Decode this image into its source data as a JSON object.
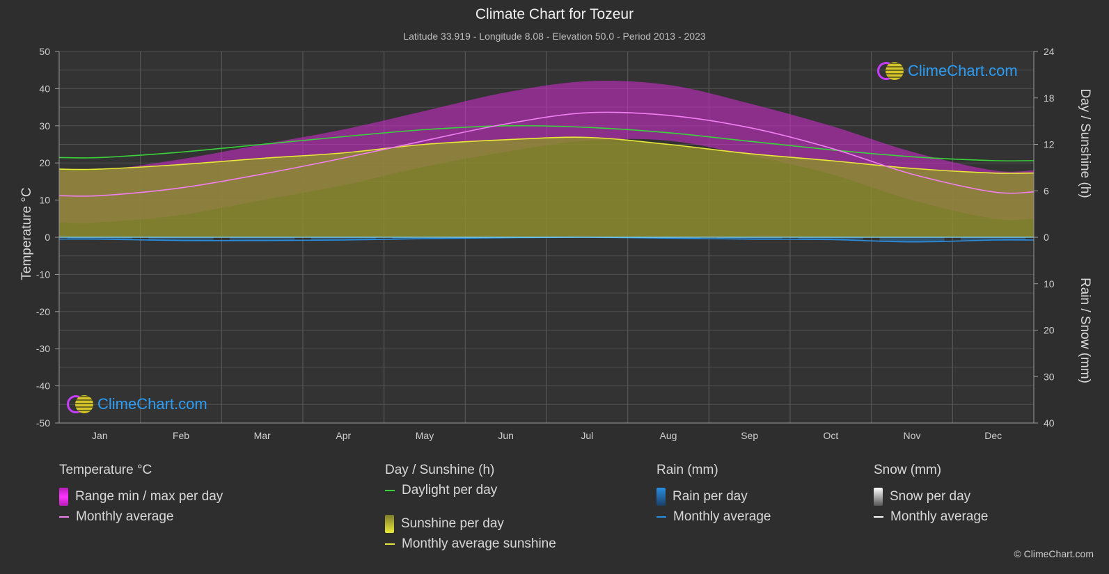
{
  "title": "Climate Chart for Tozeur",
  "subtitle": "Latitude 33.919 - Longitude 8.08 - Elevation 50.0 - Period 2013 - 2023",
  "logo_text": "ClimeChart.com",
  "copyright": "© ClimeChart.com",
  "axes": {
    "left_label": "Temperature °C",
    "right_top_label": "Day / Sunshine (h)",
    "right_bottom_label": "Rain / Snow (mm)",
    "left_ticks": [
      "50",
      "40",
      "30",
      "20",
      "10",
      "0",
      "-10",
      "-20",
      "-30",
      "-40",
      "-50"
    ],
    "right_top_ticks": [
      "24",
      "18",
      "12",
      "6",
      "0"
    ],
    "right_bottom_ticks": [
      "10",
      "20",
      "30",
      "40"
    ]
  },
  "legend": {
    "temperature": {
      "heading": "Temperature °C",
      "range": "Range min / max per day",
      "avg": "Monthly average"
    },
    "sunshine": {
      "heading": "Day / Sunshine (h)",
      "daylight": "Daylight per day",
      "sunshine": "Sunshine per day",
      "avg": "Monthly average sunshine"
    },
    "rain": {
      "heading": "Rain (mm)",
      "per_day": "Rain per day",
      "avg": "Monthly average"
    },
    "snow": {
      "heading": "Snow (mm)",
      "per_day": "Snow per day",
      "avg": "Monthly average"
    }
  },
  "colors": {
    "temp_range": "#d42bd4",
    "temp_avg": "#f27ff2",
    "daylight": "#3ad43a",
    "sunshine_fill": "#8c8c2e",
    "sunshine_avg": "#e8e83a",
    "rain": "#2a8ee0",
    "snow": "#ffffff",
    "logo_text": "#2c9df5"
  },
  "chart_data": {
    "type": "line",
    "categories": [
      "Jan",
      "Feb",
      "Mar",
      "Apr",
      "May",
      "Jun",
      "Jul",
      "Aug",
      "Sep",
      "Oct",
      "Nov",
      "Dec"
    ],
    "temperature_ylim": [
      -50,
      50
    ],
    "hours_ylim": [
      0,
      24
    ],
    "precip_ylim": [
      0,
      40
    ],
    "series": [
      {
        "name": "Temperature monthly average",
        "axis": "temperature",
        "values": [
          11.2,
          13.3,
          17.0,
          21.3,
          26.0,
          30.5,
          33.5,
          32.8,
          29.5,
          24.0,
          17.0,
          12.2
        ]
      },
      {
        "name": "Daylight per day",
        "axis": "hours",
        "values": [
          10.3,
          11.0,
          12.0,
          13.0,
          13.9,
          14.4,
          14.2,
          13.5,
          12.4,
          11.3,
          10.4,
          9.9
        ]
      },
      {
        "name": "Monthly average sunshine",
        "axis": "hours",
        "values": [
          8.8,
          9.4,
          10.2,
          10.9,
          12.0,
          12.6,
          12.9,
          12.0,
          10.8,
          9.9,
          8.9,
          8.3
        ]
      },
      {
        "name": "Rain monthly average",
        "axis": "precip",
        "values": [
          0.4,
          0.7,
          0.7,
          0.6,
          0.3,
          0.1,
          0.0,
          0.2,
          0.4,
          0.5,
          1.0,
          0.6
        ]
      },
      {
        "name": "Temperature daily minimum",
        "axis": "temperature",
        "values": [
          4,
          6,
          10,
          14,
          19,
          23,
          26,
          26,
          22,
          17,
          10,
          5
        ]
      },
      {
        "name": "Temperature daily maximum",
        "axis": "temperature",
        "values": [
          18,
          21,
          25,
          29,
          34,
          39,
          42,
          41,
          36,
          30,
          23,
          18
        ]
      }
    ]
  }
}
